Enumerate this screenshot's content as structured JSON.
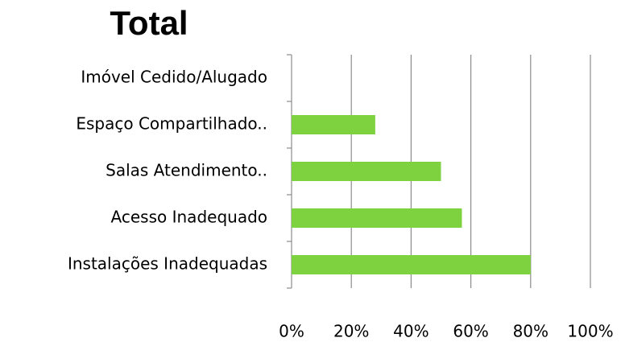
{
  "chart_data": {
    "type": "bar",
    "orientation": "horizontal",
    "title": "Total",
    "categories": [
      "Imóvel Cedido/Alugado",
      "Espaço Compartilhado..",
      "Salas Atendimento..",
      "Acesso Inadequado",
      "Instalações Inadequadas"
    ],
    "values": [
      0,
      28,
      50,
      57,
      80
    ],
    "color": "#7ed23f",
    "xlim": [
      0,
      100
    ],
    "xticks": [
      {
        "value": 0,
        "label": "0%"
      },
      {
        "value": 20,
        "label": "20%"
      },
      {
        "value": 40,
        "label": "40%"
      },
      {
        "value": 60,
        "label": "60%"
      },
      {
        "value": 80,
        "label": "80%"
      },
      {
        "value": 100,
        "label": "100%"
      }
    ],
    "grid": true
  }
}
